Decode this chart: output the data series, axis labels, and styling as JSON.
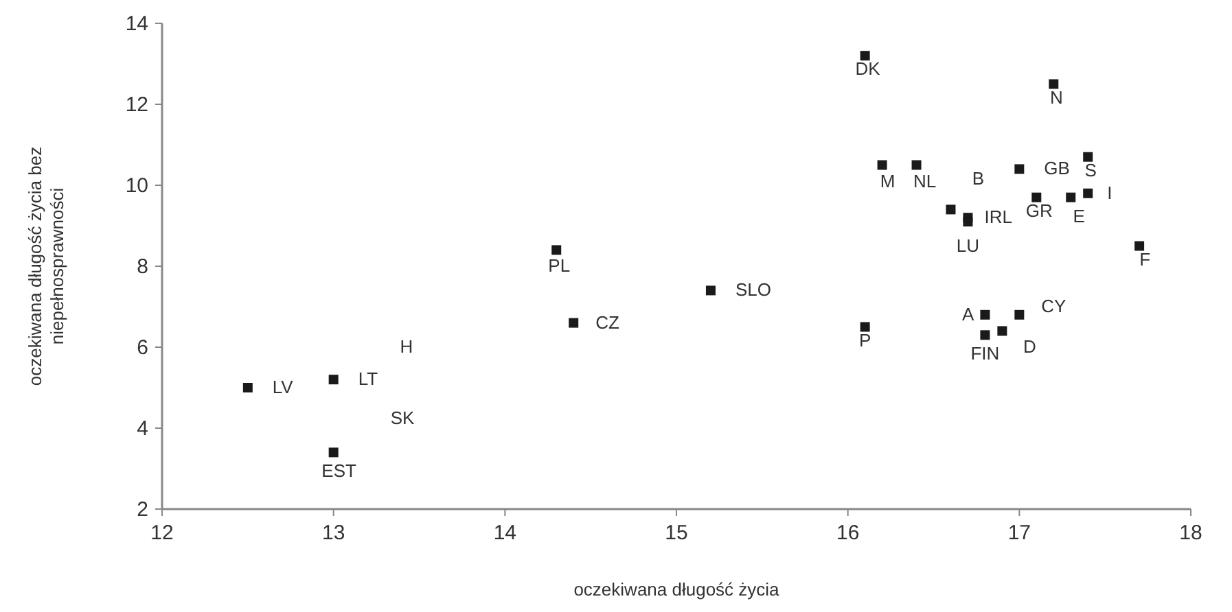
{
  "chart_data": {
    "type": "scatter",
    "xlabel": "oczekiwana długość życia",
    "ylabel": "oczekiwana długość życia bez niepełnosprawności",
    "xlim": [
      12,
      18
    ],
    "ylim": [
      2,
      14
    ],
    "xticks": [
      12,
      13,
      14,
      15,
      16,
      17,
      18
    ],
    "yticks": [
      2,
      4,
      6,
      8,
      10,
      12,
      14
    ],
    "grid": false,
    "marker": "square",
    "series": [
      {
        "color": "#1a1a1a",
        "x": [
          16.1,
          17.2,
          16.2,
          16.4,
          16.6,
          17.0,
          17.4,
          17.4,
          16.7,
          16.7,
          17.1,
          17.3,
          17.7,
          16.8,
          17.0,
          16.8,
          16.9,
          16.1,
          15.2,
          14.3,
          14.4,
          12.5,
          13.0,
          13.0
        ],
        "values": [
          13.2,
          12.5,
          10.5,
          10.5,
          9.4,
          10.4,
          10.7,
          9.8,
          9.2,
          9.1,
          9.7,
          9.7,
          8.5,
          6.8,
          6.8,
          6.3,
          6.4,
          6.5,
          7.4,
          8.4,
          6.6,
          5.0,
          5.2,
          3.4
        ]
      }
    ],
    "annotations": [
      {
        "text": "DK",
        "x": 16.1,
        "y": 13.2
      },
      {
        "text": "N",
        "x": 17.2,
        "y": 12.5
      },
      {
        "text": "M",
        "x": 16.2,
        "y": 10.5
      },
      {
        "text": "NL",
        "x": 16.4,
        "y": 10.5
      },
      {
        "text": "B",
        "x": 16.6,
        "y": 9.4
      },
      {
        "text": "GB",
        "x": 17.0,
        "y": 10.4
      },
      {
        "text": "S",
        "x": 17.4,
        "y": 10.7
      },
      {
        "text": "I",
        "x": 17.4,
        "y": 9.8
      },
      {
        "text": "IRL",
        "x": 16.7,
        "y": 9.2
      },
      {
        "text": "LU",
        "x": 16.7,
        "y": 9.1
      },
      {
        "text": "GR",
        "x": 17.1,
        "y": 9.7
      },
      {
        "text": "E",
        "x": 17.3,
        "y": 9.7
      },
      {
        "text": "F",
        "x": 17.7,
        "y": 8.5
      },
      {
        "text": "A",
        "x": 16.8,
        "y": 6.8
      },
      {
        "text": "CY",
        "x": 17.0,
        "y": 6.8
      },
      {
        "text": "FIN",
        "x": 16.8,
        "y": 6.3
      },
      {
        "text": "D",
        "x": 16.9,
        "y": 6.4
      },
      {
        "text": "P",
        "x": 16.1,
        "y": 6.5
      },
      {
        "text": "SLO",
        "x": 15.2,
        "y": 7.4
      },
      {
        "text": "PL",
        "x": 14.3,
        "y": 8.4
      },
      {
        "text": "CZ",
        "x": 14.4,
        "y": 6.6
      },
      {
        "text": "LV",
        "x": 12.5,
        "y": 5.0
      },
      {
        "text": "LT",
        "x": 13.0,
        "y": 5.2
      },
      {
        "text": "EST",
        "x": 13.0,
        "y": 3.4
      },
      "H",
      "SK"
    ]
  }
}
